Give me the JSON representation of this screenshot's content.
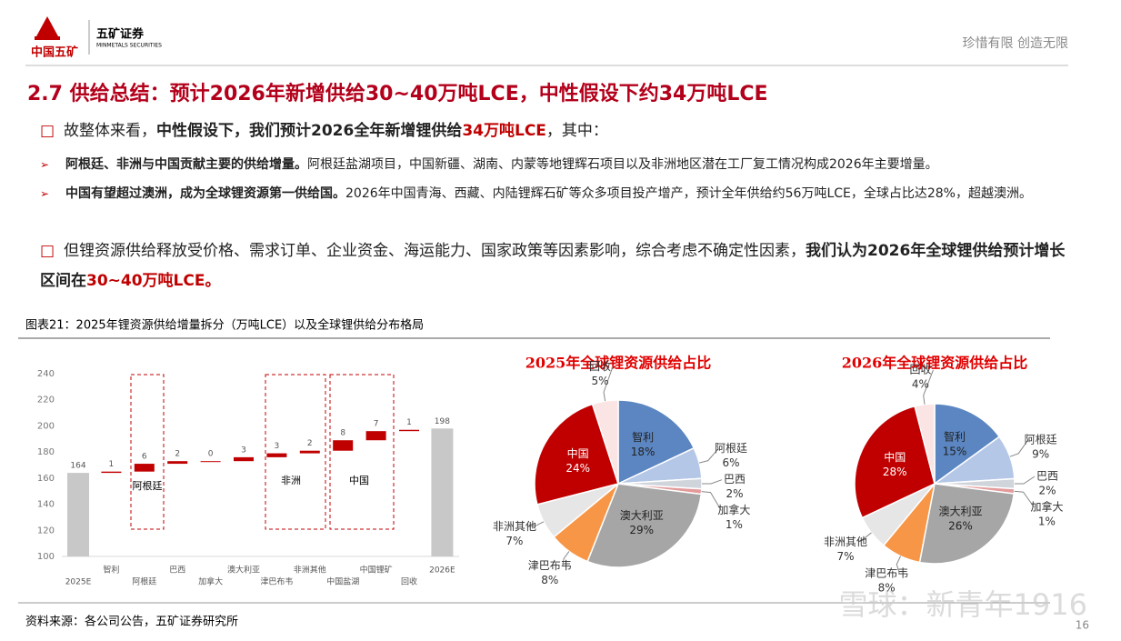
{
  "header": {
    "brand_cn": "中国五矿",
    "company": "五矿证券",
    "company_en": "MINMETALS SECURITIES",
    "slogan": "珍惜有限 创造无限"
  },
  "title": "2.7 供给总结：预计2026年新增供给30~40万吨LCE，中性假设下约34万吨LCE",
  "paragraphs": [
    {
      "level": 1,
      "runs": [
        {
          "text": "故整体来看，",
          "style": "plain"
        },
        {
          "text": "中性假设下，我们预计2026全年新增锂供给",
          "style": "bold"
        },
        {
          "text": "34万吨LCE",
          "style": "red"
        },
        {
          "text": "，其中：",
          "style": "plain"
        }
      ]
    },
    {
      "level": 2,
      "runs": [
        {
          "text": "阿根廷、非洲与中国贡献主要的供给增量。",
          "style": "bold"
        },
        {
          "text": "阿根廷盐湖项目，中国新疆、湖南、内蒙等地锂辉石项目以及非洲地区潜在工厂复工情况构成2026年主要增量。",
          "style": "plain"
        }
      ]
    },
    {
      "level": 2,
      "runs": [
        {
          "text": "中国有望超过澳洲，成为全球锂资源第一供给国。",
          "style": "bold"
        },
        {
          "text": "2026年中国青海、西藏、内陆锂辉石矿等众多项目投产增产，预计全年供给约56万吨LCE，全球占比达28%，超越澳洲。",
          "style": "plain"
        }
      ]
    },
    {
      "level": 1,
      "runs": [
        {
          "text": "但锂资源供给释放受价格、需求订单、企业资金、海运能力、国家政策等因素影响，综合考虑不确定性因素，",
          "style": "plain"
        },
        {
          "text": "我们认为2026年全球锂供给预计增长区间在",
          "style": "bold"
        },
        {
          "text": "30~40万吨LCE。",
          "style": "red"
        }
      ]
    }
  ],
  "figure_caption": "图表21：2025年锂资源供给增量拆分（万吨LCE）以及全球锂供给分布格局",
  "chart_data": [
    {
      "type": "waterfall",
      "categories": [
        "2025E",
        "智利",
        "阿根廷",
        "巴西",
        "加拿大",
        "澳大利亚",
        "津巴布韦",
        "非洲其他",
        "中国盐湖",
        "中国锂矿",
        "回收",
        "2026E"
      ],
      "values": [
        164,
        1,
        6,
        2,
        0,
        3,
        3,
        2,
        8,
        7,
        1,
        198
      ],
      "ylim": [
        100,
        240
      ],
      "yticks": [
        100,
        120,
        140,
        160,
        180,
        200,
        220,
        240
      ],
      "color": "#c00000",
      "total_color": "#c8c8c8",
      "annotations": [
        "阿根廷",
        "非洲",
        "中国"
      ]
    },
    {
      "type": "pie",
      "title": "2025年全球锂资源供给占比",
      "categories": [
        "智利",
        "阿根廷",
        "巴西",
        "加拿大",
        "澳大利亚",
        "津巴布韦",
        "非洲其他",
        "中国",
        "回收"
      ],
      "values": [
        18,
        6,
        2,
        1,
        29,
        8,
        7,
        24,
        5
      ],
      "value_labels": [
        "18%",
        "6%",
        "2%",
        "1%",
        "29%",
        "8%",
        "7%",
        "24%",
        "5%"
      ],
      "colors": [
        "#5b86c2",
        "#b4c7e7",
        "#d0d5dc",
        "#e39a9a",
        "#a6a6a6",
        "#f79646",
        "#e6e6e6",
        "#c00000",
        "#fbe4e4"
      ]
    },
    {
      "type": "pie",
      "title": "2026年全球锂资源供给占比",
      "categories": [
        "智利",
        "阿根廷",
        "巴西",
        "加拿大",
        "澳大利亚",
        "津巴布韦",
        "非洲其他",
        "中国",
        "回收"
      ],
      "values": [
        15,
        9,
        2,
        1,
        26,
        8,
        7,
        28,
        4
      ],
      "value_labels": [
        "15%",
        "9%",
        "2%",
        "1%",
        "26%",
        "8%",
        "7%",
        "28%",
        "4%"
      ],
      "colors": [
        "#5b86c2",
        "#b4c7e7",
        "#d0d5dc",
        "#e39a9a",
        "#a6a6a6",
        "#f79646",
        "#e6e6e6",
        "#c00000",
        "#fbe4e4"
      ]
    }
  ],
  "source": "资料来源：各公司公告，五矿证券研究所",
  "page_number": 16,
  "watermark": "雪球：新青年1916"
}
